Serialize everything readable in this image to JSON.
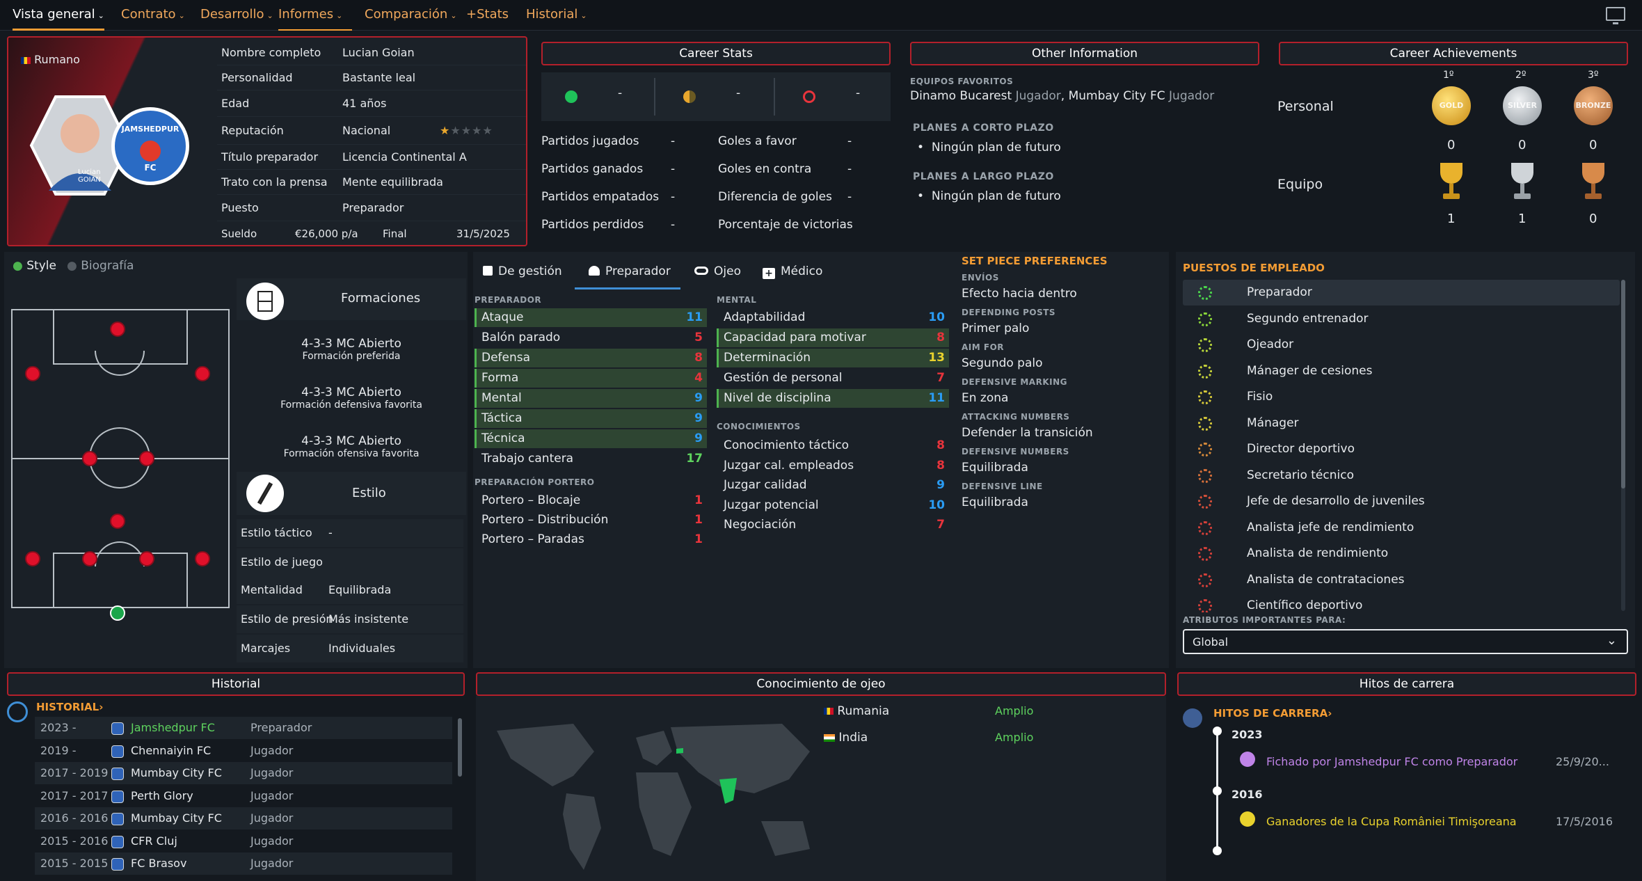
{
  "nav": {
    "tabs": [
      {
        "label": "Vista general",
        "dropdown": true
      },
      {
        "label": "Contrato",
        "dropdown": true
      },
      {
        "label": "Desarrollo",
        "dropdown": true
      },
      {
        "label": "Informes",
        "dropdown": true
      },
      {
        "label": "Comparación",
        "dropdown": true
      },
      {
        "label": "+Stats",
        "dropdown": false
      },
      {
        "label": "Historial",
        "dropdown": true
      }
    ],
    "caret": "⌄"
  },
  "profile": {
    "nationality": "Rumano",
    "photo_name": "Lucian\nGOIAN",
    "club_logo_text": "JAMSHEDPUR",
    "club_logo_sub": "FC",
    "rows": [
      {
        "label": "Nombre completo",
        "value": "Lucian Goian"
      },
      {
        "label": "Personalidad",
        "value": "Bastante leal"
      },
      {
        "label": "Edad",
        "value": "41 años"
      },
      {
        "label": "Reputación",
        "value": "Nacional",
        "stars": 1.5
      },
      {
        "label": "Título preparador",
        "value": "Licencia Continental A"
      },
      {
        "label": "Trato con la prensa",
        "value": "Mente equilibrada"
      },
      {
        "label": "Puesto",
        "value": "Preparador"
      }
    ],
    "salary_label": "Sueldo",
    "salary_value": "€26,000 p/a",
    "end_label": "Final",
    "end_value": "31/5/2025"
  },
  "career_stats": {
    "title": "Career Stats",
    "summary": [
      "-",
      "-",
      "-"
    ],
    "left": [
      {
        "label": "Partidos jugados",
        "value": "-"
      },
      {
        "label": "Partidos ganados",
        "value": "-"
      },
      {
        "label": "Partidos empatados",
        "value": "-"
      },
      {
        "label": "Partidos perdidos",
        "value": "-"
      }
    ],
    "right": [
      {
        "label": "Goles a favor",
        "value": "-"
      },
      {
        "label": "Goles en contra",
        "value": "-"
      },
      {
        "label": "Diferencia de goles",
        "value": "-"
      },
      {
        "label": "Porcentaje de victorias",
        "value": "-"
      }
    ]
  },
  "other_info": {
    "title": "Other Information",
    "fav_label": "EQUIPOS FAVORITOS",
    "fav_team1": "Dinamo Bucarest",
    "fav_role1": "Jugador",
    "fav_team2": "Mumbay City FC",
    "fav_role2": "Jugador",
    "short_label": "PLANES A CORTO PLAZO",
    "short_value": "Ningún plan de futuro",
    "long_label": "PLANES A LARGO PLAZO",
    "long_value": "Ningún plan de futuro"
  },
  "achievements": {
    "title": "Career Achievements",
    "places": [
      "1º",
      "2º",
      "3º"
    ],
    "medals": [
      "GOLD",
      "SILVER",
      "BRONZE"
    ],
    "personal_label": "Personal",
    "personal": [
      "0",
      "0",
      "0"
    ],
    "team_label": "Equipo",
    "team": [
      "1",
      "1",
      "0"
    ]
  },
  "style_panel": {
    "tab_style": "Style",
    "tab_bio": "Biografía",
    "formations_title": "Formaciones",
    "formations": [
      {
        "name": "4-3-3 MC Abierto",
        "desc": "Formación preferida"
      },
      {
        "name": "4-3-3 MC Abierto",
        "desc": "Formación defensiva favorita"
      },
      {
        "name": "4-3-3 MC Abierto",
        "desc": "Formación ofensiva favorita"
      }
    ],
    "style_title": "Estilo",
    "style_rows": [
      {
        "label": "Estilo táctico",
        "value": "-"
      },
      {
        "label": "Estilo de juego",
        "value": ""
      },
      {
        "label": "Mentalidad",
        "value": "Equilibrada"
      },
      {
        "label": "Estilo de presión",
        "value": "Más insistente"
      },
      {
        "label": "Marcajes",
        "value": "Individuales"
      }
    ]
  },
  "attributes": {
    "tabs": [
      "De gestión",
      "Preparador",
      "Ojeo",
      "Médico"
    ],
    "preparador_label": "PREPARADOR",
    "preparador": [
      {
        "label": "Ataque",
        "value": "11",
        "hl": true,
        "color": "blue"
      },
      {
        "label": "Balón parado",
        "value": "5",
        "hl": false,
        "color": "red"
      },
      {
        "label": "Defensa",
        "value": "8",
        "hl": true,
        "color": "red"
      },
      {
        "label": "Forma",
        "value": "4",
        "hl": true,
        "color": "red"
      },
      {
        "label": "Mental",
        "value": "9",
        "hl": true,
        "color": "blue"
      },
      {
        "label": "Táctica",
        "value": "9",
        "hl": true,
        "color": "blue"
      },
      {
        "label": "Técnica",
        "value": "9",
        "hl": true,
        "color": "blue"
      },
      {
        "label": "Trabajo cantera",
        "value": "17",
        "hl": false,
        "color": "green"
      }
    ],
    "portero_label": "PREPARACIÓN PORTERO",
    "portero": [
      {
        "label": "Portero – Blocaje",
        "value": "1",
        "color": "red"
      },
      {
        "label": "Portero – Distribución",
        "value": "1",
        "color": "red"
      },
      {
        "label": "Portero – Paradas",
        "value": "1",
        "color": "red"
      }
    ],
    "mental_label": "MENTAL",
    "mental": [
      {
        "label": "Adaptabilidad",
        "value": "10",
        "hl": false,
        "color": "blue"
      },
      {
        "label": "Capacidad para motivar",
        "value": "8",
        "hl": true,
        "color": "red"
      },
      {
        "label": "Determinación",
        "value": "13",
        "hl": true,
        "color": "yellow"
      },
      {
        "label": "Gestión de personal",
        "value": "7",
        "hl": false,
        "color": "red"
      },
      {
        "label": "Nivel de disciplina",
        "value": "11",
        "hl": true,
        "color": "blue"
      }
    ],
    "conoc_label": "CONOCIMIENTOS",
    "conoc": [
      {
        "label": "Conocimiento táctico",
        "value": "8",
        "color": "red"
      },
      {
        "label": "Juzgar cal. empleados",
        "value": "8",
        "color": "red"
      },
      {
        "label": "Juzgar calidad",
        "value": "9",
        "color": "blue"
      },
      {
        "label": "Juzgar potencial",
        "value": "10",
        "color": "blue"
      },
      {
        "label": "Negociación",
        "value": "7",
        "color": "red"
      }
    ]
  },
  "set_piece": {
    "title": "SET PIECE PREFERENCES",
    "items": [
      {
        "label": "ENVÍOS",
        "value": "Efecto hacia dentro"
      },
      {
        "label": "DEFENDING POSTS",
        "value": "Primer palo"
      },
      {
        "label": "AIM FOR",
        "value": "Segundo palo"
      },
      {
        "label": "DEFENSIVE MARKING",
        "value": "En zona"
      },
      {
        "label": "ATTACKING NUMBERS",
        "value": "Defender la transición"
      },
      {
        "label": "DEFENSIVE NUMBERS",
        "value": "Equilibrada"
      },
      {
        "label": "DEFENSIVE LINE",
        "value": "Equilibrada"
      }
    ]
  },
  "roles": {
    "title": "PUESTOS DE EMPLEADO",
    "items": [
      {
        "label": "Preparador",
        "color": "#4cd94c"
      },
      {
        "label": "Segundo entrenador",
        "color": "#8bd83a"
      },
      {
        "label": "Ojeador",
        "color": "#b7d63a"
      },
      {
        "label": "Mánager de cesiones",
        "color": "#c8d43a"
      },
      {
        "label": "Fisio",
        "color": "#d6c93a"
      },
      {
        "label": "Mánager",
        "color": "#d6c93a"
      },
      {
        "label": "Director deportivo",
        "color": "#d68a3a"
      },
      {
        "label": "Secretario técnico",
        "color": "#d6703a"
      },
      {
        "label": "Jefe de desarrollo de juveniles",
        "color": "#d6503a"
      },
      {
        "label": "Analista jefe de rendimiento",
        "color": "#d6403a"
      },
      {
        "label": "Analista de rendimiento",
        "color": "#d6403a"
      },
      {
        "label": "Analista de contrataciones",
        "color": "#d6403a"
      },
      {
        "label": "Científico deportivo",
        "color": "#d6403a"
      }
    ],
    "important_label": "ATRIBUTOS IMPORTANTES PARA:",
    "select_value": "Global"
  },
  "historial": {
    "title": "Historial",
    "link": "HISTORIAL",
    "rows": [
      {
        "years": "2023 -",
        "club": "Jamshedpur FC",
        "role": "Preparador",
        "current": true
      },
      {
        "years": "2019 -",
        "club": "Chennaiyin FC",
        "role": "Jugador",
        "current": false
      },
      {
        "years": "2017 - 2019",
        "club": "Mumbay City FC",
        "role": "Jugador",
        "current": false
      },
      {
        "years": "2017 - 2017",
        "club": "Perth Glory",
        "role": "Jugador",
        "current": false
      },
      {
        "years": "2016 - 2016",
        "club": "Mumbay City FC",
        "role": "Jugador",
        "current": false
      },
      {
        "years": "2015 - 2016",
        "club": "CFR Cluj",
        "role": "Jugador",
        "current": false
      },
      {
        "years": "2015 - 2015",
        "club": "FC Brasov",
        "role": "Jugador",
        "current": false
      }
    ]
  },
  "scouting": {
    "title": "Conocimiento de ojeo",
    "rows": [
      {
        "country": "Rumania",
        "flag": "ro",
        "level": "Amplio"
      },
      {
        "country": "India",
        "flag": "in",
        "level": "Amplio"
      }
    ]
  },
  "milestones": {
    "title": "Hitos de carrera",
    "link": "HITOS DE CARRERA",
    "groups": [
      {
        "year": "2023",
        "text": "Fichado por Jamshedpur FC como Preparador",
        "date": "25/9/20...",
        "color": "#c084e8"
      },
      {
        "year": "2016",
        "text": "Ganadores de la Cupa României Timişoreana",
        "date": "17/5/2016",
        "color": "#e9d22d"
      }
    ]
  }
}
